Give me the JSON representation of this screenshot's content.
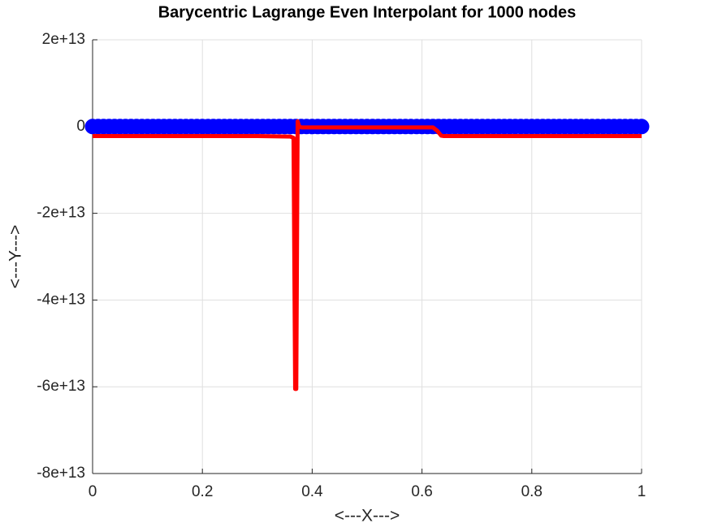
{
  "chart_data": {
    "type": "line",
    "title": "Barycentric Lagrange Even Interpolant for 1000 nodes",
    "xlabel": "<---X--->",
    "ylabel": "<---Y--->",
    "xlim": [
      0,
      1
    ],
    "ylim": [
      -80000000000000.0,
      20000000000000.0
    ],
    "xticks": [
      0,
      0.2,
      0.4,
      0.6,
      0.8,
      1
    ],
    "yticks": [
      {
        "value": -80000000000000.0,
        "label": "-8e+13"
      },
      {
        "value": -60000000000000.0,
        "label": "-6e+13"
      },
      {
        "value": -40000000000000.0,
        "label": "-4e+13"
      },
      {
        "value": -20000000000000.0,
        "label": "-2e+13"
      },
      0,
      {
        "value": 20000000000000.0,
        "label": "2e+13"
      }
    ],
    "grid": true,
    "series": [
      {
        "color": "#0000ff",
        "style": "markers",
        "x": [
          0,
          0.01,
          0.02,
          0.03,
          0.04,
          0.05,
          0.06,
          0.07,
          0.08,
          0.09,
          0.1,
          0.11,
          0.12,
          0.13,
          0.14,
          0.15,
          0.16,
          0.17,
          0.18,
          0.19,
          0.2,
          0.21,
          0.22,
          0.23,
          0.24,
          0.25,
          0.26,
          0.27,
          0.28,
          0.29,
          0.3,
          0.31,
          0.32,
          0.33,
          0.34,
          0.35,
          0.36,
          0.37,
          0.38,
          0.39,
          0.4,
          0.41,
          0.42,
          0.43,
          0.44,
          0.45,
          0.46,
          0.47,
          0.48,
          0.49,
          0.5,
          0.51,
          0.52,
          0.53,
          0.54,
          0.55,
          0.56,
          0.57,
          0.58,
          0.59,
          0.6,
          0.61,
          0.62,
          0.63,
          0.64,
          0.65,
          0.66,
          0.67,
          0.68,
          0.69,
          0.7,
          0.71,
          0.72,
          0.73,
          0.74,
          0.75,
          0.76,
          0.77,
          0.78,
          0.79,
          0.8,
          0.81,
          0.82,
          0.83,
          0.84,
          0.85,
          0.86,
          0.87,
          0.88,
          0.89,
          0.9,
          0.91,
          0.92,
          0.93,
          0.94,
          0.95,
          0.96,
          0.97,
          0.98,
          0.99,
          1
        ],
        "values": [
          0,
          0,
          0,
          0,
          0,
          0,
          0,
          0,
          0,
          0,
          0,
          0,
          0,
          0,
          0,
          0,
          0,
          0,
          0,
          0,
          0,
          0,
          0,
          0,
          0,
          0,
          0,
          0,
          0,
          0,
          0,
          0,
          0,
          0,
          0,
          0,
          0,
          0,
          0,
          0,
          0,
          0,
          0,
          0,
          0,
          0,
          0,
          0,
          0,
          0,
          0,
          0,
          0,
          0,
          0,
          0,
          0,
          0,
          0,
          0,
          0,
          0,
          0,
          0,
          0,
          0,
          0,
          0,
          0,
          0,
          0,
          0,
          0,
          0,
          0,
          0,
          0,
          0,
          0,
          0,
          0,
          0,
          0,
          0,
          0,
          0,
          0,
          0,
          0,
          0,
          0,
          0,
          0,
          0,
          0,
          0,
          0,
          0,
          0,
          0,
          0
        ]
      },
      {
        "color": "#ff0000",
        "style": "line",
        "x": [
          0,
          0.1,
          0.2,
          0.3,
          0.36,
          0.366,
          0.369,
          0.371,
          0.3735,
          0.376,
          0.38,
          0.5,
          0.62,
          0.628,
          0.635,
          0.64,
          0.7,
          0.8,
          0.9,
          1
        ],
        "values": [
          -2200000000000.0,
          -2200000000000.0,
          -2200000000000.0,
          -2200000000000.0,
          -2300000000000.0,
          -2600000000000.0,
          -60500000000000.0,
          -60500000000000.0,
          1200000000000.0,
          100000000000.0,
          -200000000000.0,
          -200000000000.0,
          -200000000000.0,
          -1000000000000.0,
          -2100000000000.0,
          -2200000000000.0,
          -2200000000000.0,
          -2200000000000.0,
          -2200000000000.0,
          -2200000000000.0
        ]
      }
    ]
  }
}
